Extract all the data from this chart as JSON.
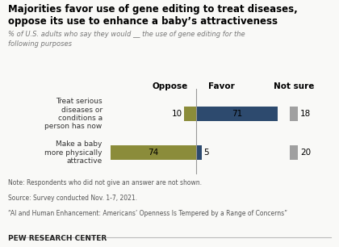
{
  "title_line1": "Majorities favor use of gene editing to treat diseases,",
  "title_line2": "oppose its use to enhance a baby’s attractiveness",
  "subtitle": "% of U.S. adults who say they would __ the use of gene editing for the\nfollowing purposes",
  "categories": [
    "Treat serious\ndiseases or\nconditions a\nperson has now",
    "Make a baby\nmore physically\nattractive"
  ],
  "oppose": [
    10,
    74
  ],
  "favor": [
    71,
    5
  ],
  "not_sure": [
    18,
    20
  ],
  "oppose_color": "#8b8c3a",
  "favor_color": "#2d4a6e",
  "not_sure_color": "#a0a0a0",
  "center_line_color": "#999999",
  "note_lines": [
    "Note: Respondents who did not give an answer are not shown.",
    "Source: Survey conducted Nov. 1-7, 2021.",
    "“AI and Human Enhancement: Americans’ Openness Is Tempered by a Range of Concerns”"
  ],
  "footer": "PEW RESEARCH CENTER",
  "bg_color": "#f9f9f7"
}
